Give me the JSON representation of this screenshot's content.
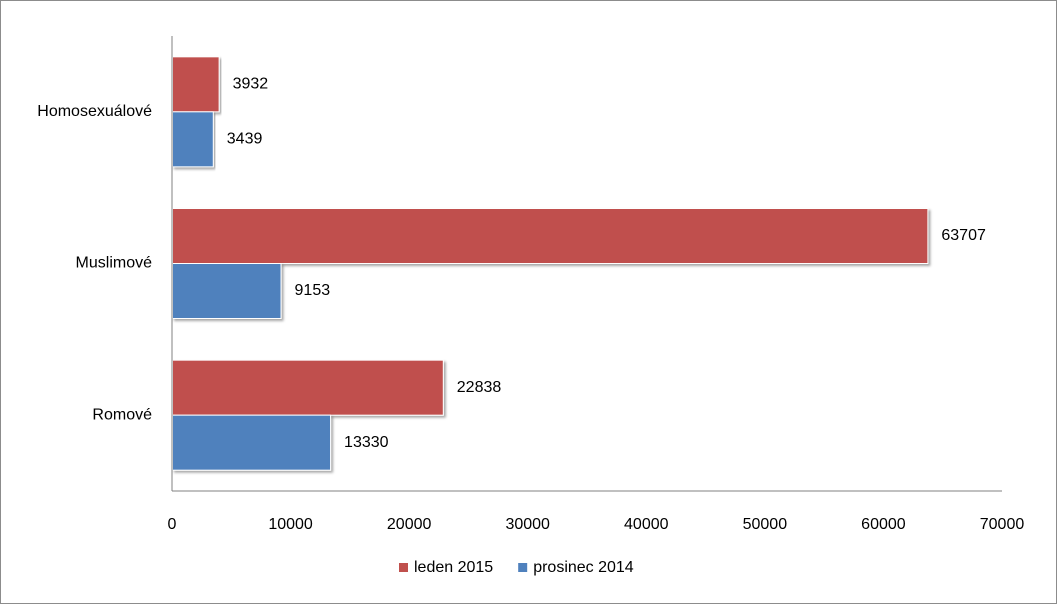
{
  "chart_data": {
    "type": "bar",
    "orientation": "horizontal",
    "categories": [
      "Homosexuálové",
      "Muslimové",
      "Romové"
    ],
    "series": [
      {
        "name": "leden 2015",
        "color": "#c0504d",
        "values": [
          3932,
          63707,
          22838
        ]
      },
      {
        "name": "prosinec 2014",
        "color": "#4f81bd",
        "values": [
          3439,
          9153,
          13330
        ]
      }
    ],
    "x_ticks": [
      "0",
      "10000",
      "20000",
      "30000",
      "40000",
      "50000",
      "60000",
      "70000"
    ],
    "xlim": [
      0,
      70000
    ],
    "grid": false,
    "data_labels": true,
    "legend_position": "bottom"
  }
}
